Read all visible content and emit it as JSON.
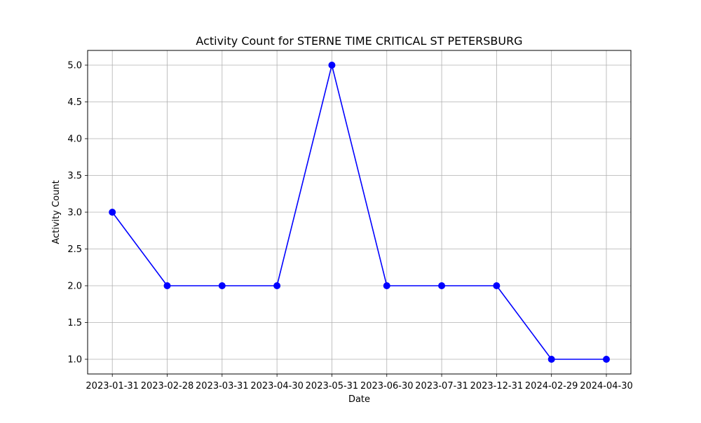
{
  "chart_data": {
    "type": "line",
    "title": "Activity Count for STERNE TIME CRITICAL ST PETERSBURG",
    "xlabel": "Date",
    "ylabel": "Activity Count",
    "categories": [
      "2023-01-31",
      "2023-02-28",
      "2023-03-31",
      "2023-04-30",
      "2023-05-31",
      "2023-06-30",
      "2023-07-31",
      "2023-12-31",
      "2024-02-29",
      "2024-04-30"
    ],
    "values": [
      3,
      2,
      2,
      2,
      5,
      2,
      2,
      2,
      1,
      1
    ],
    "ylim": [
      0.8,
      5.2
    ],
    "yticks": [
      1.0,
      1.5,
      2.0,
      2.5,
      3.0,
      3.5,
      4.0,
      4.5,
      5.0
    ],
    "ytick_labels": [
      "1.0",
      "1.5",
      "2.0",
      "2.5",
      "3.0",
      "3.5",
      "4.0",
      "4.5",
      "5.0"
    ],
    "grid": true,
    "line_color": "#0000ff",
    "marker": "circle"
  }
}
